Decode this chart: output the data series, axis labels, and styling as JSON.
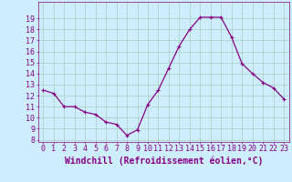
{
  "x": [
    0,
    1,
    2,
    3,
    4,
    5,
    6,
    7,
    8,
    9,
    10,
    11,
    12,
    13,
    14,
    15,
    16,
    17,
    18,
    19,
    20,
    21,
    22,
    23
  ],
  "y": [
    12.5,
    12.2,
    11.0,
    11.0,
    10.5,
    10.3,
    9.6,
    9.4,
    8.4,
    8.9,
    11.2,
    12.5,
    14.5,
    16.5,
    18.0,
    19.1,
    19.1,
    19.1,
    17.3,
    14.9,
    14.0,
    13.2,
    12.7,
    11.7
  ],
  "xlabel": "Windchill (Refroidissement éolien,°C)",
  "ylim": [
    8,
    20
  ],
  "xlim": [
    -0.5,
    23.5
  ],
  "yticks": [
    8,
    9,
    10,
    11,
    12,
    13,
    14,
    15,
    16,
    17,
    18,
    19
  ],
  "xticks": [
    0,
    1,
    2,
    3,
    4,
    5,
    6,
    7,
    8,
    9,
    10,
    11,
    12,
    13,
    14,
    15,
    16,
    17,
    18,
    19,
    20,
    21,
    22,
    23
  ],
  "line_color": "#880088",
  "marker": "+",
  "marker_size": 3,
  "background_color": "#cceeff",
  "grid_color": "#aaccbb",
  "tick_label_fontsize": 6,
  "xlabel_fontsize": 7,
  "line_width": 0.9
}
